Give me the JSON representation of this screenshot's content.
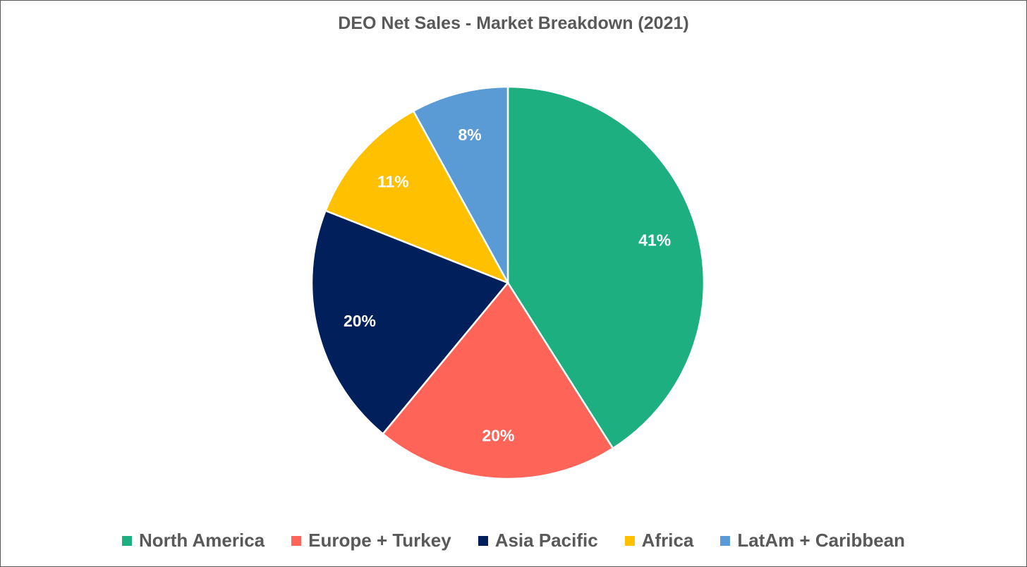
{
  "chart_data": {
    "type": "pie",
    "title": "DEO Net Sales - Market Breakdown (2021)",
    "categories": [
      "North America",
      "Europe + Turkey",
      "Asia Pacific",
      "Africa",
      "LatAm + Caribbean"
    ],
    "values": [
      41,
      20,
      20,
      11,
      8
    ],
    "data_labels": [
      "41%",
      "20%",
      "20%",
      "11%",
      "8%"
    ],
    "colors": [
      "#1DAF80",
      "#FF6459",
      "#001F5B",
      "#FFC000",
      "#5B9BD5"
    ],
    "legend_position": "bottom",
    "start_angle": "12 o'clock",
    "direction": "clockwise"
  }
}
